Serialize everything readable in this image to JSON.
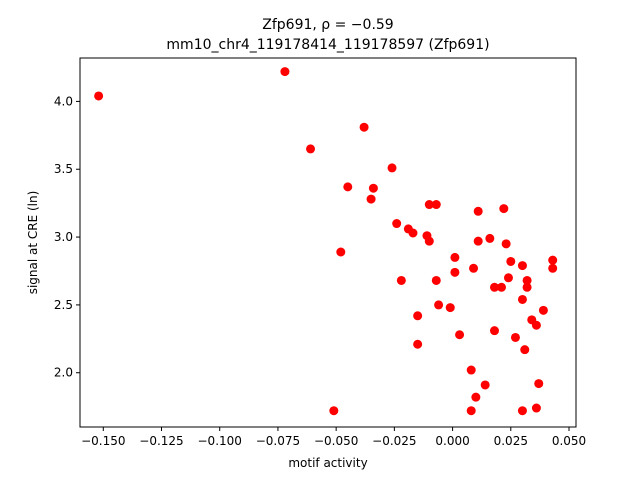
{
  "chart_data": {
    "type": "scatter",
    "title_line1": "Zfp691, ρ = −0.59",
    "title_line2": "mm10_chr4_119178414_119178597 (Zfp691)",
    "xlabel": "motif activity",
    "ylabel": "signal at CRE (ln)",
    "xlim": [
      -0.16,
      0.053
    ],
    "ylim": [
      1.6,
      4.32
    ],
    "xticks": [
      -0.15,
      -0.125,
      -0.1,
      -0.075,
      -0.05,
      -0.025,
      0.0,
      0.025,
      0.05
    ],
    "xtick_labels": [
      "−0.150",
      "−0.125",
      "−0.100",
      "−0.075",
      "−0.050",
      "−0.025",
      "0.000",
      "0.025",
      "0.050"
    ],
    "yticks": [
      2.0,
      2.5,
      3.0,
      3.5,
      4.0
    ],
    "ytick_labels": [
      "2.0",
      "2.5",
      "3.0",
      "3.5",
      "4.0"
    ],
    "grid": false,
    "marker_color": "#ff0000",
    "points": [
      {
        "x": -0.152,
        "y": 4.04
      },
      {
        "x": -0.072,
        "y": 4.22
      },
      {
        "x": -0.061,
        "y": 3.65
      },
      {
        "x": -0.038,
        "y": 3.81
      },
      {
        "x": -0.045,
        "y": 3.37
      },
      {
        "x": -0.034,
        "y": 3.36
      },
      {
        "x": -0.035,
        "y": 3.28
      },
      {
        "x": -0.026,
        "y": 3.51
      },
      {
        "x": -0.048,
        "y": 2.89
      },
      {
        "x": -0.051,
        "y": 1.72
      },
      {
        "x": -0.024,
        "y": 3.1
      },
      {
        "x": -0.019,
        "y": 3.06
      },
      {
        "x": -0.017,
        "y": 3.03
      },
      {
        "x": -0.011,
        "y": 3.01
      },
      {
        "x": -0.01,
        "y": 2.97
      },
      {
        "x": -0.01,
        "y": 3.24
      },
      {
        "x": -0.007,
        "y": 3.24
      },
      {
        "x": -0.022,
        "y": 2.68
      },
      {
        "x": -0.007,
        "y": 2.68
      },
      {
        "x": -0.015,
        "y": 2.42
      },
      {
        "x": -0.006,
        "y": 2.5
      },
      {
        "x": -0.015,
        "y": 2.21
      },
      {
        "x": 0.001,
        "y": 2.85
      },
      {
        "x": 0.001,
        "y": 2.74
      },
      {
        "x": -0.001,
        "y": 2.48
      },
      {
        "x": 0.003,
        "y": 2.28
      },
      {
        "x": 0.011,
        "y": 3.19
      },
      {
        "x": 0.011,
        "y": 2.97
      },
      {
        "x": 0.016,
        "y": 2.99
      },
      {
        "x": 0.022,
        "y": 3.21
      },
      {
        "x": 0.009,
        "y": 2.77
      },
      {
        "x": 0.023,
        "y": 2.95
      },
      {
        "x": 0.025,
        "y": 2.82
      },
      {
        "x": 0.024,
        "y": 2.7
      },
      {
        "x": 0.018,
        "y": 2.63
      },
      {
        "x": 0.021,
        "y": 2.63
      },
      {
        "x": 0.03,
        "y": 2.79
      },
      {
        "x": 0.032,
        "y": 2.68
      },
      {
        "x": 0.032,
        "y": 2.63
      },
      {
        "x": 0.03,
        "y": 2.54
      },
      {
        "x": 0.043,
        "y": 2.83
      },
      {
        "x": 0.043,
        "y": 2.77
      },
      {
        "x": 0.039,
        "y": 2.46
      },
      {
        "x": 0.034,
        "y": 2.39
      },
      {
        "x": 0.036,
        "y": 2.35
      },
      {
        "x": 0.018,
        "y": 2.31
      },
      {
        "x": 0.027,
        "y": 2.26
      },
      {
        "x": 0.031,
        "y": 2.17
      },
      {
        "x": 0.008,
        "y": 2.02
      },
      {
        "x": 0.014,
        "y": 1.91
      },
      {
        "x": 0.037,
        "y": 1.92
      },
      {
        "x": 0.01,
        "y": 1.82
      },
      {
        "x": 0.008,
        "y": 1.72
      },
      {
        "x": 0.03,
        "y": 1.72
      },
      {
        "x": 0.036,
        "y": 1.74
      }
    ]
  }
}
